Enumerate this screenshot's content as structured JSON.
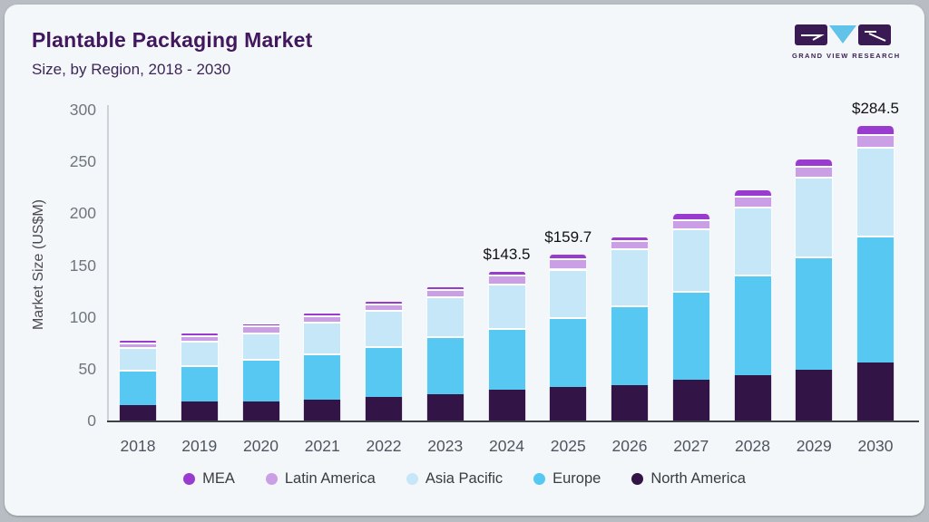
{
  "header": {
    "title": "Plantable Packaging Market",
    "subtitle": "Size, by Region, 2018 - 2030",
    "logo": {
      "brand": "GRAND VIEW RESEARCH",
      "block_color": "#3a1a52",
      "triangle_color": "#62c3ea"
    }
  },
  "chart_data": {
    "type": "bar",
    "stacked": true,
    "title": "Plantable Packaging Market Size, by Region, 2018 - 2030",
    "ylabel": "Market Size (US$M)",
    "ylim": [
      0,
      300
    ],
    "yticks": [
      0,
      50,
      100,
      150,
      200,
      250,
      300
    ],
    "grid": false,
    "legend_position": "bottom",
    "categories": [
      "2018",
      "2019",
      "2020",
      "2021",
      "2022",
      "2023",
      "2024",
      "2025",
      "2026",
      "2027",
      "2028",
      "2029",
      "2030"
    ],
    "series": [
      {
        "name": "North America",
        "color": "#321447",
        "values": [
          15,
          18,
          18.5,
          20,
          23,
          25,
          30,
          32,
          34,
          39,
          44,
          49,
          56
        ]
      },
      {
        "name": "Europe",
        "color": "#56c8f2",
        "values": [
          34,
          35,
          41,
          45,
          49,
          56,
          59,
          68,
          77,
          86,
          97,
          109,
          122.5
        ]
      },
      {
        "name": "Asia Pacific",
        "color": "#c5e7f8",
        "values": [
          21.5,
          24,
          25.5,
          30.5,
          34.5,
          39,
          43,
          46.5,
          55,
          60,
          65.5,
          77,
          86
        ]
      },
      {
        "name": "Latin America",
        "color": "#cb9fe5",
        "values": [
          5,
          5.5,
          6.5,
          6,
          6,
          7,
          9,
          10,
          8,
          9,
          10,
          10.5,
          12
        ]
      },
      {
        "name": "MEA",
        "color": "#9a3bd0",
        "values": [
          1.5,
          1.5,
          1.5,
          2,
          2,
          2,
          2.5,
          3.2,
          3,
          5,
          6,
          6.5,
          8
        ]
      }
    ],
    "totals": [
      77,
      84,
      93,
      103.5,
      114.5,
      129,
      143.5,
      159.7,
      177,
      199,
      222.5,
      252,
      284.5
    ],
    "legend_order": [
      "MEA",
      "Latin America",
      "Asia Pacific",
      "Europe",
      "North America"
    ],
    "annotations": [
      {
        "category": "2024",
        "label": "$143.5"
      },
      {
        "category": "2025",
        "label": "$159.7"
      },
      {
        "category": "2030",
        "label": "$284.5"
      }
    ]
  }
}
